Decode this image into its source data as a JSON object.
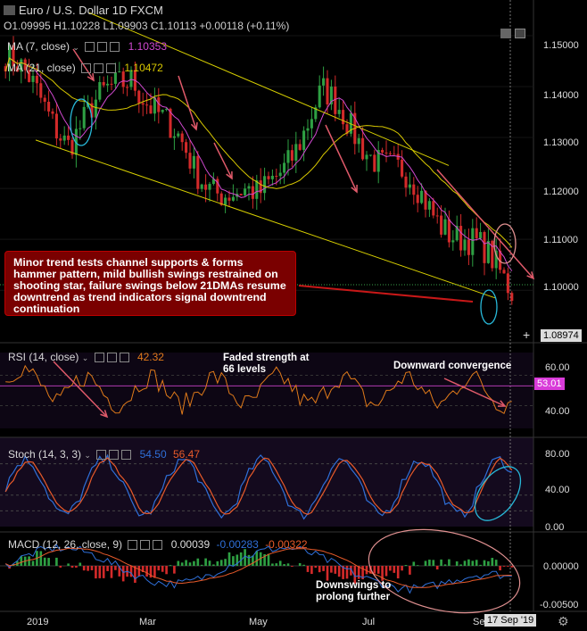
{
  "header": {
    "title": "Euro / U.S. Dollar 1D FXCM",
    "ohlc": {
      "o": "1.09995",
      "h": "1.10228",
      "l": "1.09903",
      "c": "1.10113",
      "change": "+0.00118 (+0.11%)"
    }
  },
  "indicators": {
    "ma7": {
      "label": "MA (7, close)",
      "value": "1.10353"
    },
    "ma21": {
      "label": "MA (21, close)",
      "value": "1.10472"
    },
    "rsi": {
      "label": "RSI (14, close)",
      "value": "42.32",
      "tag": "53.01"
    },
    "stoch": {
      "label": "Stoch (14, 3, 3)",
      "k": "54.50",
      "d": "56.47"
    },
    "macd": {
      "label": "MACD (12, 26, close, 9)",
      "v1": "0.00039",
      "v2": "-0.00283",
      "v3": "-0.00322"
    }
  },
  "annotations": {
    "callout": "Minor trend tests channel supports & forms hammer pattern, mild bullish swings restrained on shooting star, failure swings below 21DMAs resume downtrend as trend indicators signal downtrend continuation",
    "faded": "Faded strength at 66 levels",
    "convergence": "Downward convergence",
    "downswings": "Downswings to prolong further"
  },
  "price_axis": {
    "ticks": [
      "1.15000",
      "1.14000",
      "1.13000",
      "1.12000",
      "1.11000",
      "1.10000"
    ],
    "current": "1.08974"
  },
  "rsi_axis": [
    "60.00",
    "40.00"
  ],
  "stoch_axis": [
    "80.00",
    "40.00",
    "0.00"
  ],
  "macd_axis": [
    "0.00000",
    "-0.00500"
  ],
  "time_axis": {
    "labels": [
      "2019",
      "Mar",
      "May",
      "Jul",
      "Se"
    ],
    "current": "17 Sep '19"
  },
  "colors": {
    "up": "#2ea043",
    "down": "#d32a2a",
    "ma7": "#d049d0",
    "ma21": "#d8c800",
    "rsi": "#e07a1a",
    "stoch_k": "#2f6fd8",
    "stoch_d": "#e85a2a",
    "channel": "#d8d000"
  },
  "chart_data": {
    "type": "candlestick",
    "symbol": "EUR/USD",
    "timeframe": "1D",
    "ylim": [
      1.0897,
      1.157
    ],
    "key_points": {
      "x": [
        "2019-01",
        "2019-02",
        "2019-03",
        "2019-04",
        "2019-05",
        "2019-06",
        "2019-07",
        "2019-08",
        "2019-09"
      ],
      "y": [
        1.146,
        1.13,
        1.143,
        1.123,
        1.117,
        1.138,
        1.125,
        1.113,
        1.101
      ]
    },
    "ma7_last": 1.10353,
    "ma21_last": 1.10472,
    "rsi_last": 42.32,
    "stoch_last": [
      54.5,
      56.47
    ],
    "macd_last": [
      0.00039,
      -0.00283,
      -0.00322
    ]
  }
}
